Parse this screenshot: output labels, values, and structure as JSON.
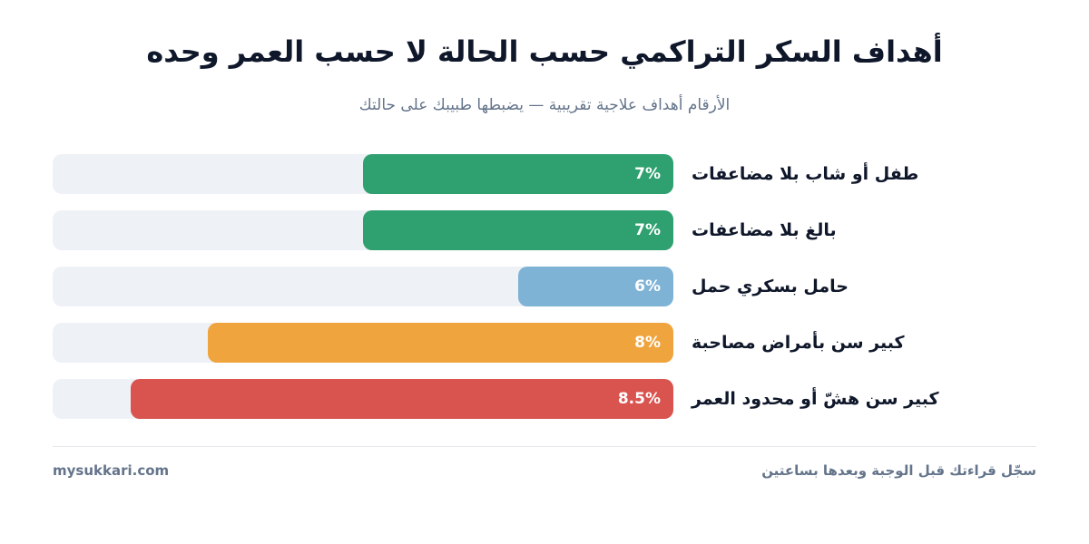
{
  "chart_data": {
    "type": "bar",
    "orientation": "horizontal",
    "title": "أهداف السكر التراكمي حسب الحالة لا حسب العمر وحده",
    "subtitle": "الأرقام أهداف علاجية تقريبية — يضبطها طبيبك على حالتك",
    "xlim": [
      5,
      9
    ],
    "grid": false,
    "categories": [
      "طفل أو شاب بلا مضاعفات",
      "بالغ بلا مضاعفات",
      "حامل بسكري حمل",
      "كبير سن بأمراض مصاحبة",
      "كبير سن هشّ أو محدود العمر"
    ],
    "values": [
      7,
      7,
      6,
      8,
      8.5
    ],
    "value_labels": [
      "7%",
      "7%",
      "6%",
      "8%",
      "8.5%"
    ],
    "colors": [
      "#2fa06f",
      "#2fa06f",
      "#7fb3d6",
      "#f0a43e",
      "#d9534f"
    ]
  },
  "footer": {
    "site": "mysukkari.com",
    "note": "سجّل قراءتك قبل الوجبة وبعدها بساعتين"
  },
  "colors": {
    "track": "#eef1f5",
    "title": "#0f172a",
    "muted": "#64748b"
  }
}
